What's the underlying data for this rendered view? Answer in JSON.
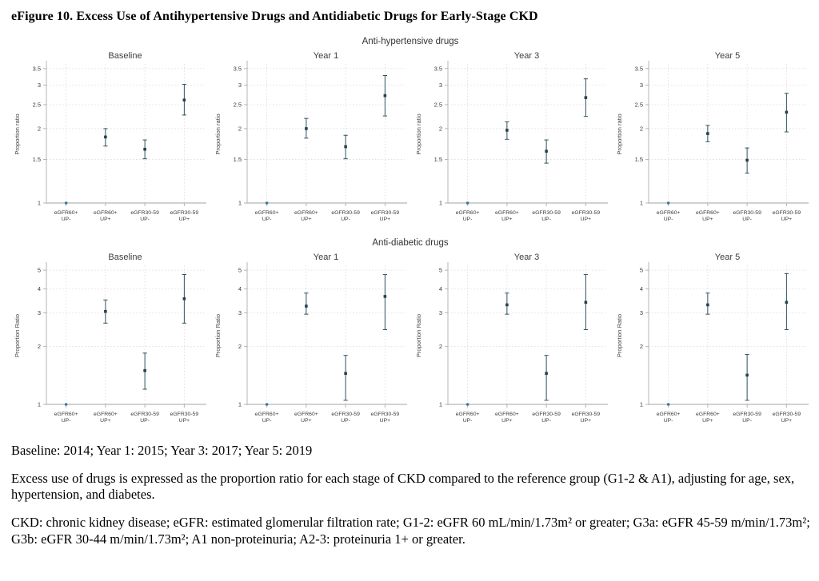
{
  "page": {
    "title": "eFigure 10. Excess Use of Antihypertensive Drugs and Antidiabetic Drugs for Early-Stage CKD",
    "captions": [
      "Baseline: 2014; Year 1: 2015; Year 3: 2017; Year 5: 2019",
      "Excess use of drugs is expressed as the proportion ratio for each stage of CKD compared to the reference group (G1-2 & A1), adjusting for age, sex, hypertension, and diabetes.",
      "CKD: chronic kidney disease; eGFR: estimated glomerular filtration rate; G1-2: eGFR 60 mL/min/1.73m² or greater; G3a: eGFR 45-59 m/min/1.73m²; G3b: eGFR 30-44 m/min/1.73m²; A1 non-proteinuria; A2-3: proteinuria 1+ or greater."
    ]
  },
  "chart_data": {
    "type": "scatter",
    "subtype": "point-estimates-with-95ci",
    "scale": "log",
    "grid": "dotted",
    "legend": "none",
    "categories": [
      [
        "eGFR60+",
        "UP-"
      ],
      [
        "eGFR60+",
        "UP+"
      ],
      [
        "eGFR30-59",
        "UP-"
      ],
      [
        "eGFR30-59",
        "UP+"
      ]
    ],
    "colors": {
      "marker": "#24424f",
      "error_bar": "#31505e",
      "reference_point": "#3579a8",
      "axis": "#b5b5b5",
      "grid": "#d9d9d9",
      "tick_label": "#3a3a3a",
      "panel_title": "#3d3d3d"
    },
    "rows": [
      {
        "title": "Anti-hypertensive drugs",
        "ylabel": "Proportion ratio",
        "yticks": [
          1,
          1.5,
          2,
          2.5,
          3,
          3.5
        ],
        "ylim": [
          1,
          3.6
        ],
        "panels": [
          {
            "title": "Baseline",
            "points": [
              {
                "est": 1.0,
                "ref": true
              },
              {
                "est": 1.85,
                "lo": 1.7,
                "hi": 2.0
              },
              {
                "est": 1.65,
                "lo": 1.51,
                "hi": 1.8
              },
              {
                "est": 2.61,
                "lo": 2.27,
                "hi": 3.02
              }
            ]
          },
          {
            "title": "Year 1",
            "points": [
              {
                "est": 1.0,
                "ref": true
              },
              {
                "est": 2.0,
                "lo": 1.83,
                "hi": 2.2
              },
              {
                "est": 1.69,
                "lo": 1.51,
                "hi": 1.88
              },
              {
                "est": 2.72,
                "lo": 2.25,
                "hi": 3.28
              }
            ]
          },
          {
            "title": "Year 3",
            "points": [
              {
                "est": 1.0,
                "ref": true
              },
              {
                "est": 1.97,
                "lo": 1.81,
                "hi": 2.13
              },
              {
                "est": 1.62,
                "lo": 1.45,
                "hi": 1.8
              },
              {
                "est": 2.67,
                "lo": 2.24,
                "hi": 3.18
              }
            ]
          },
          {
            "title": "Year 5",
            "points": [
              {
                "est": 1.0,
                "ref": true
              },
              {
                "est": 1.91,
                "lo": 1.77,
                "hi": 2.06
              },
              {
                "est": 1.49,
                "lo": 1.32,
                "hi": 1.67
              },
              {
                "est": 2.33,
                "lo": 1.94,
                "hi": 2.78
              }
            ]
          }
        ]
      },
      {
        "title": "Anti-diabetic drugs",
        "ylabel": "Proportion Ratio",
        "yticks": [
          1,
          2,
          3,
          4,
          5
        ],
        "ylim": [
          1,
          5.2
        ],
        "panels": [
          {
            "title": "Baseline",
            "points": [
              {
                "est": 1.0,
                "ref": true
              },
              {
                "est": 3.05,
                "lo": 2.65,
                "hi": 3.5
              },
              {
                "est": 1.5,
                "lo": 1.2,
                "hi": 1.85
              },
              {
                "est": 3.55,
                "lo": 2.65,
                "hi": 4.75
              }
            ]
          },
          {
            "title": "Year 1",
            "points": [
              {
                "est": 1.0,
                "ref": true
              },
              {
                "est": 3.25,
                "lo": 2.95,
                "hi": 3.8
              },
              {
                "est": 1.45,
                "lo": 1.05,
                "hi": 1.8
              },
              {
                "est": 3.65,
                "lo": 2.45,
                "hi": 4.75
              }
            ]
          },
          {
            "title": "Year 3",
            "points": [
              {
                "est": 1.0,
                "ref": true
              },
              {
                "est": 3.3,
                "lo": 2.95,
                "hi": 3.8
              },
              {
                "est": 1.45,
                "lo": 1.05,
                "hi": 1.8
              },
              {
                "est": 3.4,
                "lo": 2.45,
                "hi": 4.75
              }
            ]
          },
          {
            "title": "Year 5",
            "points": [
              {
                "est": 1.0,
                "ref": true
              },
              {
                "est": 3.3,
                "lo": 2.95,
                "hi": 3.8
              },
              {
                "est": 1.42,
                "lo": 1.05,
                "hi": 1.82
              },
              {
                "est": 3.4,
                "lo": 2.45,
                "hi": 4.8
              }
            ]
          }
        ]
      }
    ]
  }
}
